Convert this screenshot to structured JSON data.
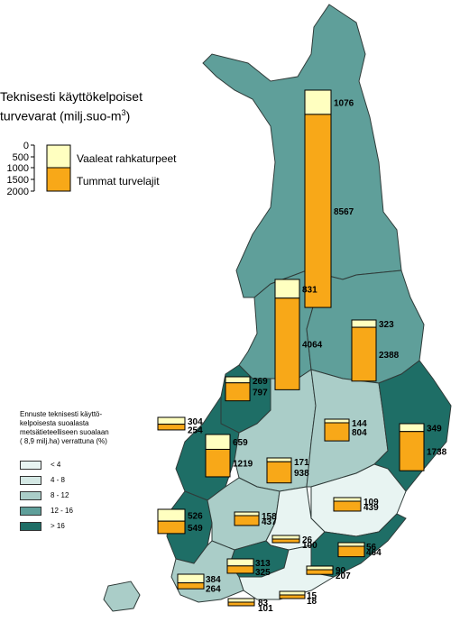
{
  "title_line1": "Teknisesti käyttökelpoiset",
  "title_line2": "turvevarat (milj.suo-m",
  "title_sup": "3",
  "title_end": ")",
  "scale_ticks": [
    "0",
    "500",
    "1000",
    "1500",
    "2000"
  ],
  "legend": {
    "light_label": "Vaaleat rahkaturpeet",
    "dark_label": "Tummat turvelajit",
    "light_color": "#ffffc0",
    "dark_color": "#f8a818"
  },
  "class_legend": {
    "title_lines": [
      "Ennuste teknisesti käyttö-",
      "kelpoisesta suoalasta",
      "metsätieteelliseen suoalaan",
      "( 8,9 milj.ha) verrattuna  (%)"
    ],
    "classes": [
      {
        "label": "< 4",
        "color": "#e8f4f2"
      },
      {
        "label": "4 - 8",
        "color": "#d4e8e4"
      },
      {
        "label": "8 - 12",
        "color": "#aacdc8"
      },
      {
        "label": "12 - 16",
        "color": "#5f9f9a"
      },
      {
        "label": "> 16",
        "color": "#1e6e66"
      }
    ]
  },
  "region_colors": {
    "c12_16": "#5f9f9a",
    "c16": "#1e6e66",
    "c8_12": "#aacdc8",
    "c4_8": "#d4e8e4",
    "c_lt4": "#e8f4f2"
  },
  "bars": [
    {
      "light": "1076",
      "dark": "8567"
    },
    {
      "light": "831",
      "dark": "4064"
    },
    {
      "light": "323",
      "dark": "2388"
    },
    {
      "light": "269",
      "dark": "797"
    },
    {
      "light": "304",
      "dark": "254"
    },
    {
      "light": "144",
      "dark": "804"
    },
    {
      "light": "349",
      "dark": "1738"
    },
    {
      "light": "659",
      "dark": "1219"
    },
    {
      "light": "171",
      "dark": "938"
    },
    {
      "light": "109",
      "dark": "439"
    },
    {
      "light": "526",
      "dark": "549"
    },
    {
      "light": "158",
      "dark": "437"
    },
    {
      "light": "26",
      "dark": "100"
    },
    {
      "light": "56",
      "dark": "464"
    },
    {
      "light": "313",
      "dark": "325"
    },
    {
      "light": "90",
      "dark": "207"
    },
    {
      "light": "384",
      "dark": "264"
    },
    {
      "light": "83",
      "dark": "101"
    },
    {
      "light": "15",
      "dark": "18"
    }
  ]
}
